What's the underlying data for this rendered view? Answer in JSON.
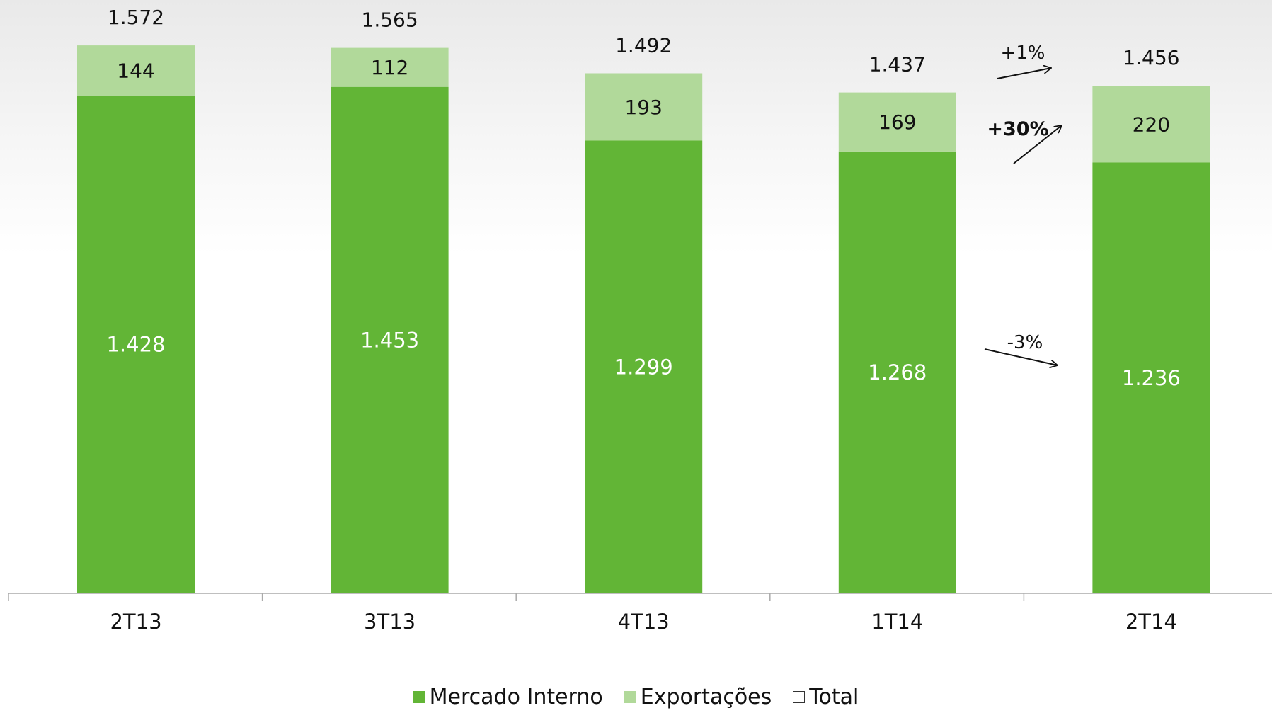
{
  "chart_data": {
    "type": "bar",
    "stacked": true,
    "categories": [
      "2T13",
      "3T13",
      "4T13",
      "1T14",
      "2T14"
    ],
    "series": [
      {
        "name": "Mercado Interno",
        "values": [
          1428,
          1453,
          1299,
          1268,
          1236
        ],
        "labels": [
          "1.428",
          "1.453",
          "1.299",
          "1.268",
          "1.236"
        ],
        "color": "#62b536"
      },
      {
        "name": "Exportações",
        "values": [
          144,
          112,
          193,
          169,
          220
        ],
        "labels": [
          "144",
          "112",
          "193",
          "169",
          "220"
        ],
        "color": "#b1d99a"
      }
    ],
    "totals": {
      "name": "Total",
      "values": [
        1572,
        1565,
        1492,
        1437,
        1456
      ],
      "labels": [
        "1.572",
        "1.565",
        "1.492",
        "1.437",
        "1.456"
      ]
    },
    "annotations": [
      {
        "text": "+1%",
        "target": "Total"
      },
      {
        "text": "+30%",
        "target": "Exportações"
      },
      {
        "text": "-3%",
        "target": "Mercado Interno"
      }
    ],
    "ylim": [
      0,
      1680
    ],
    "grid": false,
    "legend": "bottom"
  }
}
